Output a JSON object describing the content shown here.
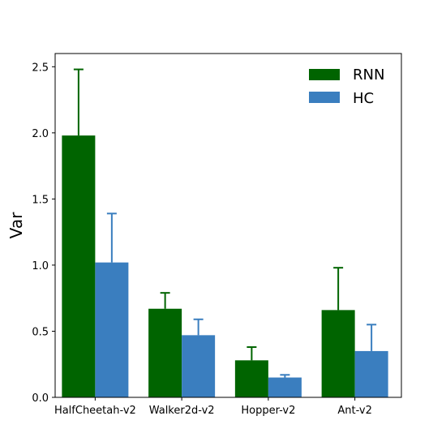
{
  "chart_data": {
    "type": "bar",
    "title": "",
    "xlabel": "",
    "ylabel": "Var",
    "ylim": [
      0,
      2.6
    ],
    "yticks": [
      "0.0",
      "0.5",
      "1.0",
      "1.5",
      "2.0",
      "2.5"
    ],
    "ytick_values": [
      0,
      0.5,
      1.0,
      1.5,
      2.0,
      2.5
    ],
    "categories": [
      "HalfCheetah-v2",
      "Walker2d-v2",
      "Hopper-v2",
      "Ant-v2"
    ],
    "series": [
      {
        "name": "RNN",
        "color": "#006400",
        "values": [
          1.98,
          0.67,
          0.28,
          0.66
        ],
        "errors": [
          0.5,
          0.12,
          0.1,
          0.32
        ]
      },
      {
        "name": "HC",
        "color": "#3a7ebf",
        "values": [
          1.02,
          0.47,
          0.15,
          0.35
        ],
        "errors": [
          0.37,
          0.12,
          0.02,
          0.2
        ]
      }
    ],
    "grid": false,
    "legend_position": "top-right"
  }
}
